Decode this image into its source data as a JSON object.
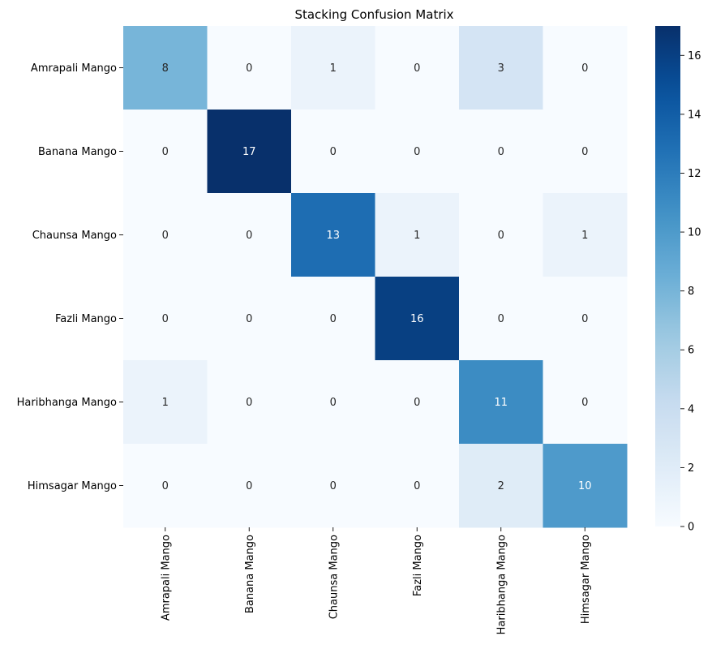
{
  "chart_data": {
    "type": "heatmap",
    "title": "Stacking Confusion Matrix",
    "xlabel": "",
    "ylabel": "",
    "rows": [
      "Amrapali Mango",
      "Banana Mango",
      "Chaunsa Mango",
      "Fazli Mango",
      "Haribhanga Mango",
      "Himsagar Mango"
    ],
    "columns": [
      "Amrapali Mango",
      "Banana Mango",
      "Chaunsa Mango",
      "Fazli Mango",
      "Haribhanga Mango",
      "Himsagar Mango"
    ],
    "values": [
      [
        8,
        0,
        1,
        0,
        3,
        0
      ],
      [
        0,
        17,
        0,
        0,
        0,
        0
      ],
      [
        0,
        0,
        13,
        1,
        0,
        1
      ],
      [
        0,
        0,
        0,
        16,
        0,
        0
      ],
      [
        1,
        0,
        0,
        0,
        11,
        0
      ],
      [
        0,
        0,
        0,
        0,
        2,
        10
      ]
    ],
    "colorbar": {
      "min": 0,
      "max": 17,
      "ticks": [
        0,
        2,
        4,
        6,
        8,
        10,
        12,
        14,
        16
      ],
      "colormap": "Blues"
    },
    "grid": false
  }
}
